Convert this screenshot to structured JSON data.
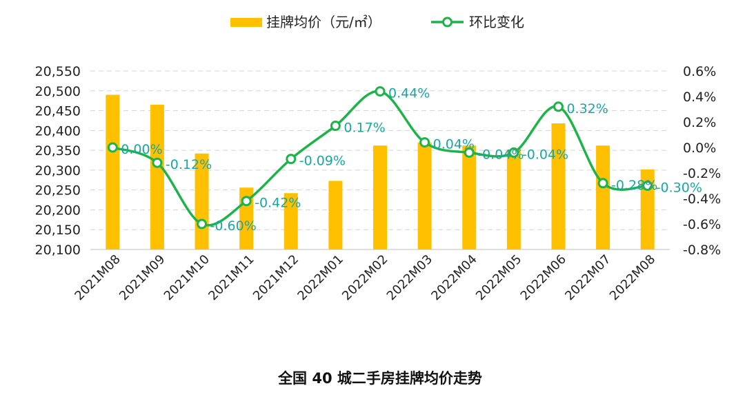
{
  "chart_data": {
    "type": "bar+line",
    "title": "全国 40 城二手房挂牌均价走势",
    "categories": [
      "2021M08",
      "2021M09",
      "2021M10",
      "2021M11",
      "2021M12",
      "2022M01",
      "2022M02",
      "2022M03",
      "2022M04",
      "2022M05",
      "2022M06",
      "2022M07",
      "2022M08"
    ],
    "series": [
      {
        "name": "挂牌均价（元/㎡）",
        "type": "bar",
        "axis": "left",
        "color": "#FFC000",
        "values": [
          20490,
          20465,
          20342,
          20256,
          20242,
          20273,
          20362,
          20370,
          20362,
          20350,
          20418,
          20362,
          20302
        ]
      },
      {
        "name": "环比变化",
        "type": "line",
        "axis": "right",
        "color": "#1DB34A",
        "values": [
          0.0,
          -0.12,
          -0.6,
          -0.42,
          -0.09,
          0.17,
          0.44,
          0.04,
          -0.04,
          -0.04,
          0.32,
          -0.28,
          -0.3
        ],
        "labels": [
          "0.00%",
          "-0.12%",
          "-0.60%",
          "-0.42%",
          "-0.09%",
          "0.17%",
          "0.44%",
          "0.04%",
          "-0.04%",
          "-0.04%",
          "0.32%",
          "-0.28%",
          "-0.30%"
        ]
      }
    ],
    "y_left": {
      "min": 20100,
      "max": 20550,
      "ticks": [
        20100,
        20150,
        20200,
        20250,
        20300,
        20350,
        20400,
        20450,
        20500,
        20550
      ],
      "tick_labels": [
        "20,100",
        "20,150",
        "20,200",
        "20,250",
        "20,300",
        "20,350",
        "20,400",
        "20,450",
        "20,500",
        "20,550"
      ]
    },
    "y_right": {
      "min": -0.8,
      "max": 0.6,
      "ticks": [
        -0.8,
        -0.6,
        -0.4,
        -0.2,
        0.0,
        0.2,
        0.4,
        0.6
      ],
      "tick_labels": [
        "-0.8%",
        "-0.6%",
        "-0.4%",
        "-0.2%",
        "0.0%",
        "0.2%",
        "0.4%",
        "0.6%"
      ]
    },
    "grid": "horizontal-dashed",
    "legend_position": "top-center"
  }
}
